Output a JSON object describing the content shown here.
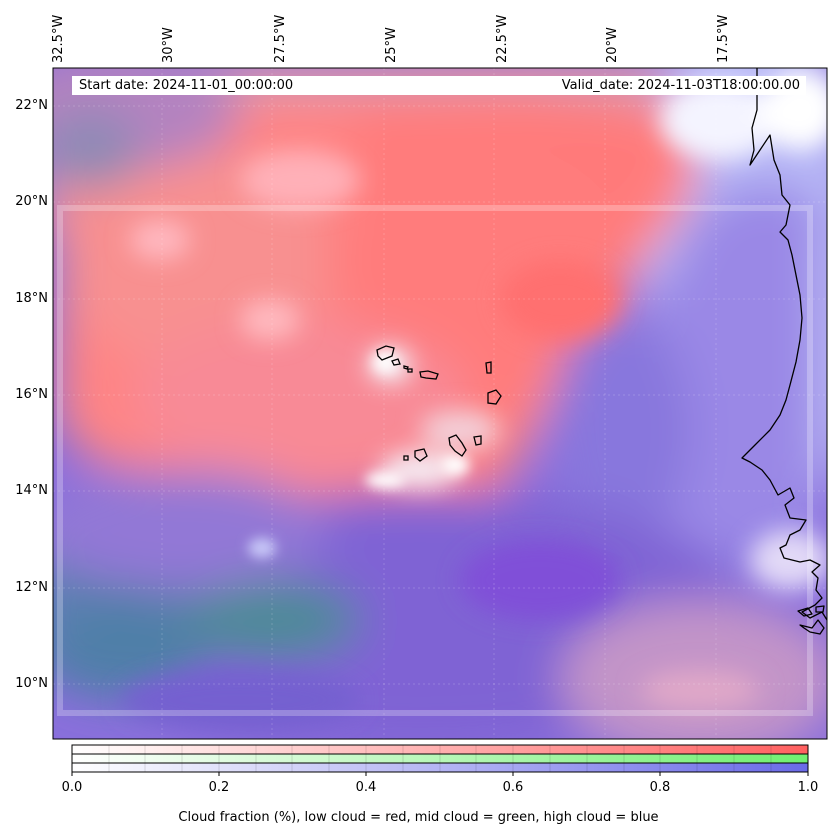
{
  "map": {
    "start_label": "Start date: 2024-11-01_00:00:00",
    "valid_label": "Valid_date: 2024-11-03T18:00:00.00",
    "lon_ticks": [
      "32.5°W",
      "30°W",
      "27.5°W",
      "25°W",
      "22.5°W",
      "20°W",
      "17.5°W"
    ],
    "lat_ticks": [
      "22°N",
      "20°N",
      "18°N",
      "16°N",
      "14°N",
      "12°N",
      "10°N"
    ],
    "extent": {
      "lon_min": -32.5,
      "lon_max": -15.3,
      "lat_min": 8.9,
      "lat_max": 22.8
    },
    "features": [
      "Cape Verde islands",
      "West African coastline"
    ]
  },
  "colorbar": {
    "tick_labels": [
      "0.0",
      "0.2",
      "0.4",
      "0.6",
      "0.8",
      "1.0"
    ],
    "range": [
      0.0,
      1.0
    ],
    "caption": "Cloud fraction (%), low cloud = red, mid cloud = green, high cloud = blue",
    "colors": {
      "low": "#ff6060",
      "mid": "#70ef70",
      "high": "#6a6ae8"
    }
  }
}
